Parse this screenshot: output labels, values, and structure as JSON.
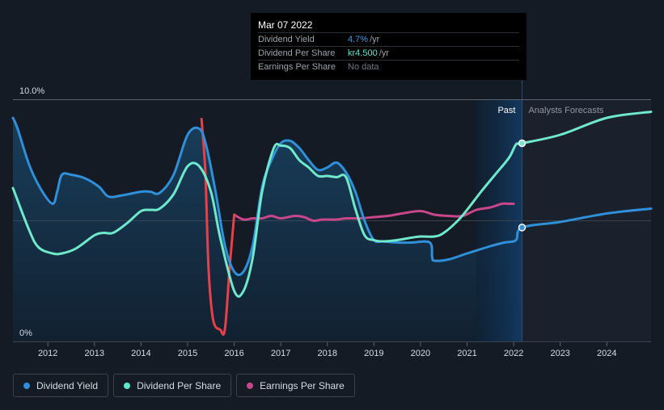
{
  "tooltip": {
    "date": "Mar 07 2022",
    "rows": [
      {
        "label": "Dividend Yield",
        "value": "4.7%",
        "unit": "/yr",
        "color": "#2f9fe8"
      },
      {
        "label": "Dividend Per Share",
        "value": "kr4.500",
        "unit": "/yr",
        "color": "#5ce8cc"
      },
      {
        "label": "Earnings Per Share",
        "value": "No data",
        "unit": "",
        "color": "#6f7781"
      }
    ]
  },
  "legend": [
    {
      "label": "Dividend Yield",
      "color": "#2f8fd8"
    },
    {
      "label": "Dividend Per Share",
      "color": "#5ce8cc"
    },
    {
      "label": "Earnings Per Share",
      "color": "#c8468a"
    }
  ],
  "chart_data": {
    "type": "line",
    "y_top_label": "10.0%",
    "y_bottom_label": "0%",
    "ylim": [
      0,
      10
    ],
    "xlim": [
      2011.25,
      2024.95
    ],
    "x_ticks": [
      2012,
      2013,
      2014,
      2015,
      2016,
      2017,
      2018,
      2019,
      2020,
      2021,
      2022,
      2023,
      2024
    ],
    "past_label": "Past",
    "forecast_label": "Analysts Forecasts",
    "past_end": 2022.18,
    "forecast_band_start": 2021.2,
    "gridlines": [
      10,
      5,
      0
    ],
    "colors": {
      "yield": "#2f8fd8",
      "dps": "#6fe8cc",
      "eps": "#c8468a",
      "eps_drop": "#e8404a"
    },
    "series": [
      {
        "name": "Dividend Yield",
        "key": "yield",
        "x": [
          2011.25,
          2011.35,
          2011.6,
          2011.85,
          2012.1,
          2012.2,
          2012.3,
          2012.5,
          2012.8,
          2013.1,
          2013.3,
          2013.6,
          2014.0,
          2014.2,
          2014.4,
          2014.7,
          2015.0,
          2015.25,
          2015.4,
          2015.6,
          2015.8,
          2016.0,
          2016.2,
          2016.4,
          2016.6,
          2016.8,
          2017.0,
          2017.2,
          2017.4,
          2017.6,
          2017.8,
          2018.0,
          2018.2,
          2018.4,
          2018.6,
          2018.8,
          2019.0,
          2019.2,
          2019.5,
          2019.8,
          2020.2,
          2020.25,
          2020.3,
          2020.6,
          2021.0,
          2021.5,
          2021.8,
          2022.05,
          2022.18,
          2023.0,
          2024.0,
          2024.95
        ],
        "y": [
          9.25,
          8.8,
          7.3,
          6.3,
          5.7,
          6.2,
          6.9,
          6.9,
          6.75,
          6.4,
          6.0,
          6.05,
          6.2,
          6.2,
          6.15,
          6.9,
          8.55,
          8.8,
          8.1,
          6.2,
          4.0,
          2.9,
          2.9,
          4.0,
          6.4,
          7.5,
          8.2,
          8.3,
          8.0,
          7.5,
          7.1,
          7.2,
          7.4,
          7.0,
          6.2,
          5.0,
          4.2,
          4.15,
          4.1,
          4.1,
          4.1,
          3.5,
          3.35,
          3.4,
          3.65,
          3.95,
          4.1,
          4.2,
          4.72,
          4.95,
          5.3,
          5.5
        ]
      },
      {
        "name": "Dividend Per Share",
        "key": "dps",
        "x": [
          2011.25,
          2011.6,
          2011.8,
          2012.1,
          2012.3,
          2012.6,
          2013.0,
          2013.2,
          2013.4,
          2013.7,
          2014.0,
          2014.2,
          2014.4,
          2014.7,
          2015.0,
          2015.25,
          2015.5,
          2015.7,
          2016.0,
          2016.2,
          2016.4,
          2016.6,
          2016.85,
          2017.0,
          2017.2,
          2017.4,
          2017.6,
          2017.8,
          2018.0,
          2018.2,
          2018.4,
          2018.6,
          2018.8,
          2019.0,
          2019.2,
          2019.5,
          2019.8,
          2020.0,
          2020.3,
          2020.5,
          2020.8,
          2021.0,
          2021.3,
          2021.6,
          2021.9,
          2022.05,
          2022.18,
          2023.0,
          2024.0,
          2024.95
        ],
        "y": [
          6.35,
          4.6,
          3.9,
          3.65,
          3.65,
          3.85,
          4.4,
          4.5,
          4.5,
          4.9,
          5.4,
          5.45,
          5.5,
          6.1,
          7.25,
          7.25,
          6.2,
          4.3,
          2.1,
          2.1,
          3.5,
          6.2,
          8.0,
          8.1,
          8.0,
          7.5,
          7.2,
          6.85,
          6.85,
          6.8,
          6.8,
          5.5,
          4.4,
          4.2,
          4.15,
          4.2,
          4.3,
          4.35,
          4.35,
          4.5,
          5.0,
          5.45,
          6.2,
          6.9,
          7.6,
          8.15,
          8.2,
          8.55,
          9.25,
          9.5
        ]
      },
      {
        "name": "Earnings Per Share",
        "key": "eps",
        "x": [
          2015.3,
          2015.38,
          2015.45,
          2015.55,
          2015.7,
          2015.8,
          2015.9,
          2016.0,
          2016.2,
          2016.4,
          2016.6,
          2016.8,
          2017.0,
          2017.3,
          2017.5,
          2017.7,
          2017.9,
          2018.2,
          2018.4,
          2018.7,
          2019.0,
          2019.3,
          2019.6,
          2020.0,
          2020.3,
          2020.6,
          2020.9,
          2021.2,
          2021.5,
          2021.75,
          2021.9,
          2022.0
        ],
        "y": [
          9.2,
          7.0,
          3.0,
          0.9,
          0.5,
          0.5,
          3.0,
          5.25,
          5.05,
          5.1,
          5.1,
          5.2,
          5.1,
          5.2,
          5.15,
          5.0,
          5.05,
          5.05,
          5.1,
          5.1,
          5.15,
          5.2,
          5.3,
          5.4,
          5.25,
          5.2,
          5.2,
          5.45,
          5.55,
          5.7,
          5.7,
          5.7
        ]
      }
    ]
  }
}
